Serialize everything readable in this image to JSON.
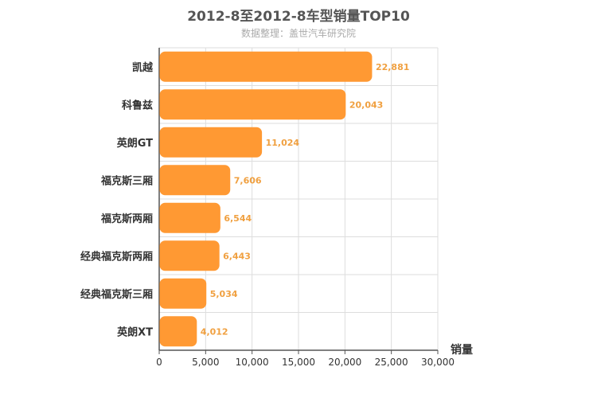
{
  "chart_data": {
    "type": "bar",
    "orientation": "horizontal",
    "title": "2012-8至2012-8车型销量TOP10",
    "subtitle": "数据整理：盖世汽车研究院",
    "xlabel": "销量",
    "ylabel": "",
    "categories": [
      "凯越",
      "科鲁兹",
      "英朗GT",
      "福克斯三厢",
      "福克斯两厢",
      "经典福克斯两厢",
      "经典福克斯三厢",
      "英朗XT"
    ],
    "values": [
      22881,
      20043,
      11024,
      7606,
      6544,
      6443,
      5034,
      4012
    ],
    "value_labels": [
      "22,881",
      "20,043",
      "11,024",
      "7,606",
      "6,544",
      "6,443",
      "5,034",
      "4,012"
    ],
    "xlim": [
      0,
      30000
    ],
    "ticks": [
      0,
      5000,
      10000,
      15000,
      20000,
      25000,
      30000
    ],
    "tick_labels": [
      "0",
      "5,000",
      "10,000",
      "15,000",
      "20,000",
      "25,000",
      "30,000"
    ],
    "grid": true,
    "bar_color": "#ff9933"
  }
}
